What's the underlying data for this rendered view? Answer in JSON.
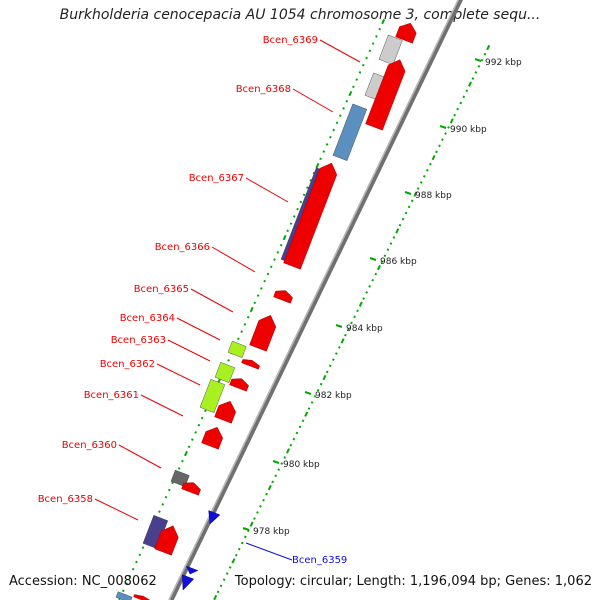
{
  "title": "Burkholderia cenocepacia AU 1054 chromosome 3, complete sequ...",
  "accession_label": "Accession: NC_008062",
  "stats": "Topology: circular; Length: 1,196,094 bp; Genes: 1,062",
  "colors": {
    "reverse_gene": "#ee0000",
    "forward_gene": "#1010dd",
    "backbone": "#888888",
    "dots": "#00aa00",
    "category_blue": "#5b8fbf",
    "category_purple": "#4a3f8c",
    "category_green": "#a8f020",
    "category_gray": "#666666",
    "category_light": "#cccccc"
  },
  "scale_labels": [
    "978 kbp",
    "980 kbp",
    "982 kbp",
    "984 kbp",
    "986 kbp",
    "988 kbp",
    "990 kbp",
    "992 kbp"
  ],
  "gene_labels": [
    {
      "text": "Bcen_6369",
      "strand": "reverse"
    },
    {
      "text": "Bcen_6368",
      "strand": "reverse"
    },
    {
      "text": "Bcen_6367",
      "strand": "reverse"
    },
    {
      "text": "Bcen_6366",
      "strand": "reverse"
    },
    {
      "text": "Bcen_6365",
      "strand": "reverse"
    },
    {
      "text": "Bcen_6364",
      "strand": "reverse"
    },
    {
      "text": "Bcen_6363",
      "strand": "reverse"
    },
    {
      "text": "Bcen_6362",
      "strand": "reverse"
    },
    {
      "text": "Bcen_6361",
      "strand": "reverse"
    },
    {
      "text": "Bcen_6360",
      "strand": "reverse"
    },
    {
      "text": "Bcen_6358",
      "strand": "reverse"
    },
    {
      "text": "Bcen_6359",
      "strand": "forward"
    }
  ]
}
